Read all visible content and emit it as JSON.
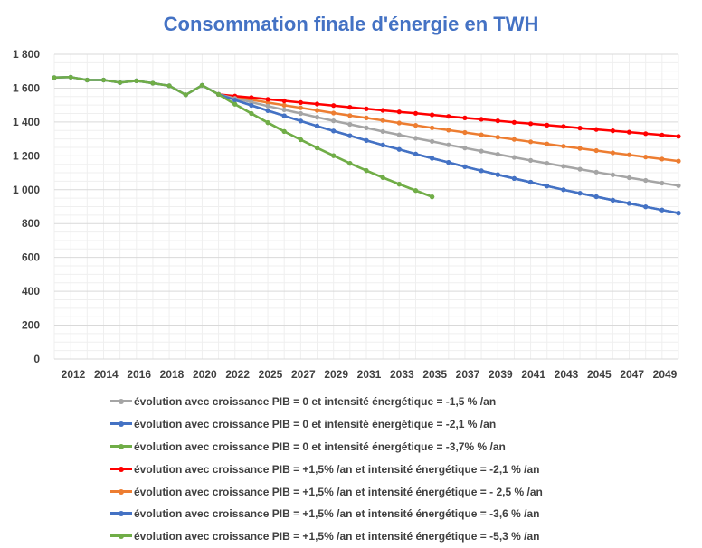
{
  "chart_data": {
    "type": "line",
    "title": "Consommation finale d'énergie en TWH",
    "xlabel": "",
    "ylabel": "",
    "ylim": [
      0,
      1800
    ],
    "yticks": [
      0,
      200,
      400,
      600,
      800,
      1000,
      1200,
      1400,
      1600,
      1800
    ],
    "ytick_labels": [
      "0",
      "200",
      "400",
      "600",
      "800",
      "1 000",
      "1 200",
      "1 400",
      "1 600",
      "1 800"
    ],
    "xlim": [
      2012,
      2050
    ],
    "xtick_labels": [
      "2012",
      "2014",
      "2016",
      "2018",
      "2020",
      "2022",
      "2025",
      "2027",
      "2029",
      "2031",
      "2033",
      "2035",
      "2037",
      "2039",
      "2041",
      "2043",
      "2045",
      "2047",
      "2049"
    ],
    "grid": true,
    "legend_position": "bottom",
    "series": [
      {
        "name": "évolution avec croissance PIB = 0 et intensité énergétique = -1,5 % /an",
        "color": "#a5a5a5",
        "x": [
          2012,
          2013,
          2014,
          2015,
          2016,
          2017,
          2018,
          2019,
          2020,
          2021,
          2022,
          2023,
          2024,
          2025,
          2026,
          2027,
          2028,
          2029,
          2030,
          2031,
          2032,
          2033,
          2034,
          2035,
          2036,
          2037,
          2038,
          2039,
          2040,
          2041,
          2042,
          2043,
          2044,
          2045,
          2046,
          2047,
          2048,
          2049,
          2050
        ],
        "y": [
          1662,
          1665,
          1648,
          1648,
          1633,
          1643,
          1629,
          1614,
          1560,
          1617,
          1563,
          1540,
          1517,
          1494,
          1472,
          1450,
          1428,
          1407,
          1386,
          1365,
          1344,
          1324,
          1304,
          1285,
          1265,
          1246,
          1228,
          1209,
          1191,
          1173,
          1156,
          1138,
          1121,
          1104,
          1088,
          1071,
          1055,
          1039,
          1024
        ]
      },
      {
        "name": "évolution avec croissance PIB = 0 et intensité énergétique = -2,1 % /an",
        "color": "#4472c4",
        "x": [
          2012,
          2013,
          2014,
          2015,
          2016,
          2017,
          2018,
          2019,
          2020,
          2021,
          2022,
          2023,
          2024,
          2025,
          2026,
          2027,
          2028,
          2029,
          2030,
          2031,
          2032,
          2033,
          2034,
          2035,
          2036,
          2037,
          2038,
          2039,
          2040,
          2041,
          2042,
          2043,
          2044,
          2045,
          2046,
          2047,
          2048,
          2049,
          2050
        ],
        "y": [
          1662,
          1665,
          1648,
          1648,
          1633,
          1643,
          1629,
          1614,
          1560,
          1617,
          1563,
          1530,
          1498,
          1467,
          1436,
          1406,
          1376,
          1347,
          1319,
          1291,
          1264,
          1238,
          1211,
          1186,
          1161,
          1136,
          1112,
          1089,
          1066,
          1044,
          1022,
          1000,
          979,
          959,
          938,
          919,
          899,
          880,
          862
        ]
      },
      {
        "name": "évolution avec croissance PIB = 0 et intensité énergétique = -3,7% % /an",
        "color": "#70ad47",
        "x": [
          2012,
          2013,
          2014,
          2015,
          2016,
          2017,
          2018,
          2019,
          2020,
          2021,
          2022,
          2023,
          2024,
          2025,
          2026,
          2027,
          2028,
          2029,
          2030,
          2031,
          2032,
          2033,
          2034,
          2035
        ],
        "y": [
          1662,
          1665,
          1648,
          1648,
          1633,
          1643,
          1629,
          1614,
          1560,
          1617,
          1563,
          1505,
          1450,
          1396,
          1344,
          1295,
          1247,
          1201,
          1156,
          1113,
          1072,
          1033,
          995,
          958
        ]
      },
      {
        "name": "évolution avec croissance PIB = +1,5% /an et intensité énergétique = -2,1 % /an",
        "color": "#ff0000",
        "x": [
          2022,
          2023,
          2024,
          2025,
          2026,
          2027,
          2028,
          2029,
          2030,
          2031,
          2032,
          2033,
          2034,
          2035,
          2036,
          2037,
          2038,
          2039,
          2040,
          2041,
          2042,
          2043,
          2044,
          2045,
          2046,
          2047,
          2048,
          2049,
          2050
        ],
        "y": [
          1563,
          1553,
          1544,
          1534,
          1525,
          1515,
          1506,
          1497,
          1487,
          1478,
          1469,
          1460,
          1451,
          1442,
          1433,
          1424,
          1416,
          1407,
          1398,
          1390,
          1381,
          1373,
          1364,
          1356,
          1348,
          1340,
          1331,
          1323,
          1315
        ]
      },
      {
        "name": "évolution avec croissance PIB = +1,5% /an et intensité énergétique = - 2,5 % /an",
        "color": "#ed7d31",
        "x": [
          2022,
          2023,
          2024,
          2025,
          2026,
          2027,
          2028,
          2029,
          2030,
          2031,
          2032,
          2033,
          2034,
          2035,
          2036,
          2037,
          2038,
          2039,
          2040,
          2041,
          2042,
          2043,
          2044,
          2045,
          2046,
          2047,
          2048,
          2049,
          2050
        ],
        "y": [
          1563,
          1547,
          1531,
          1515,
          1499,
          1484,
          1469,
          1453,
          1438,
          1424,
          1409,
          1394,
          1380,
          1366,
          1352,
          1338,
          1324,
          1310,
          1297,
          1283,
          1270,
          1257,
          1244,
          1231,
          1218,
          1206,
          1193,
          1181,
          1169
        ]
      },
      {
        "name": "évolution avec croissance PIB = +1,5% /an et intensité énergétique = -3,6 % /an",
        "color": "#4472c4",
        "x": [
          2022,
          2023,
          2024,
          2025,
          2026,
          2027,
          2028,
          2029,
          2030,
          2031,
          2032,
          2033,
          2034,
          2035,
          2036,
          2037,
          2038,
          2039,
          2040,
          2041,
          2042,
          2043,
          2044,
          2045,
          2046,
          2047,
          2048,
          2049,
          2050
        ],
        "y": [
          1563,
          1530,
          1498,
          1467,
          1436,
          1406,
          1376,
          1347,
          1319,
          1291,
          1264,
          1238,
          1211,
          1186,
          1161,
          1136,
          1112,
          1089,
          1066,
          1044,
          1022,
          1000,
          979,
          959,
          938,
          919,
          899,
          880,
          862
        ]
      },
      {
        "name": "évolution avec croissance PIB = +1,5% /an et intensité énergétique = -5,3 % /an",
        "color": "#70ad47",
        "x": [
          2022,
          2023,
          2024,
          2025,
          2026,
          2027,
          2028,
          2029,
          2030,
          2031,
          2032,
          2033,
          2034,
          2035
        ],
        "y": [
          1563,
          1505,
          1450,
          1396,
          1344,
          1295,
          1247,
          1201,
          1156,
          1113,
          1072,
          1033,
          995,
          958
        ]
      }
    ]
  }
}
